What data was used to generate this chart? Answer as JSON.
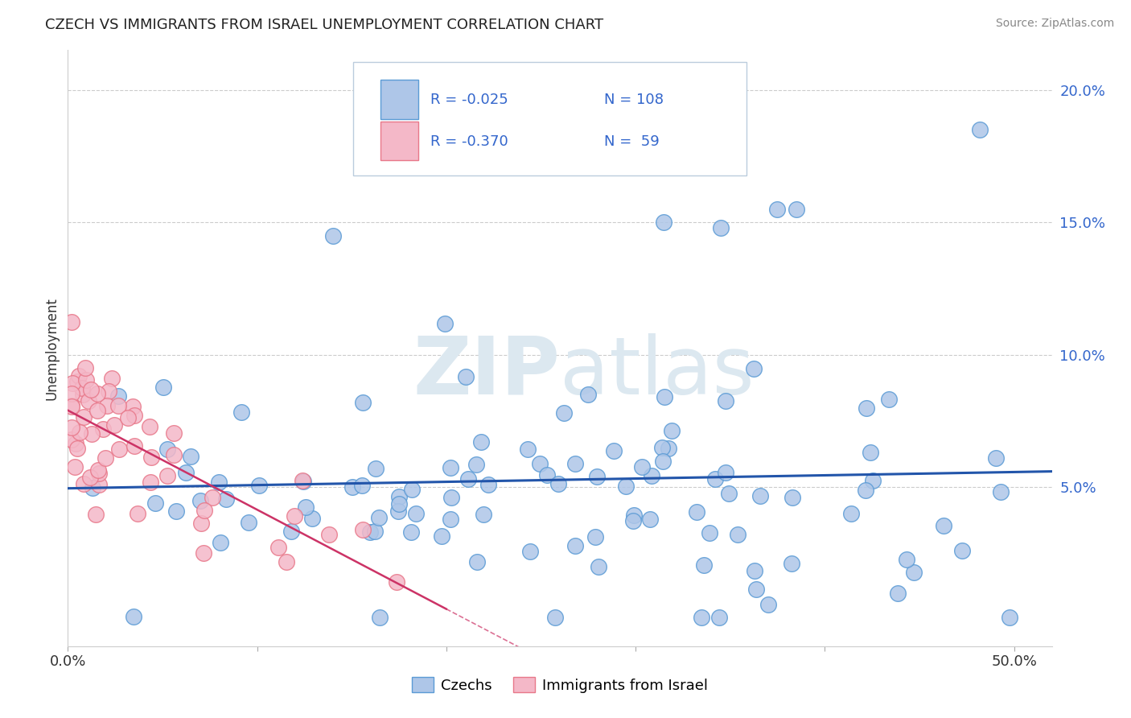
{
  "title": "CZECH VS IMMIGRANTS FROM ISRAEL UNEMPLOYMENT CORRELATION CHART",
  "source": "Source: ZipAtlas.com",
  "ylabel": "Unemployment",
  "xlim": [
    0.0,
    0.52
  ],
  "ylim": [
    -0.01,
    0.215
  ],
  "blue_color": "#aec6e8",
  "blue_edge": "#5b9bd5",
  "pink_color": "#f4b8c8",
  "pink_edge": "#e8788a",
  "blue_line_color": "#2255aa",
  "pink_line_color": "#cc3366",
  "watermark_color": "#dce8f0",
  "background_color": "#ffffff",
  "grid_color": "#cccccc",
  "legend_box_color": "#e8f0f8",
  "legend_box_edge": "#aabbcc",
  "ytick_color": "#3366cc",
  "title_color": "#222222",
  "source_color": "#888888"
}
